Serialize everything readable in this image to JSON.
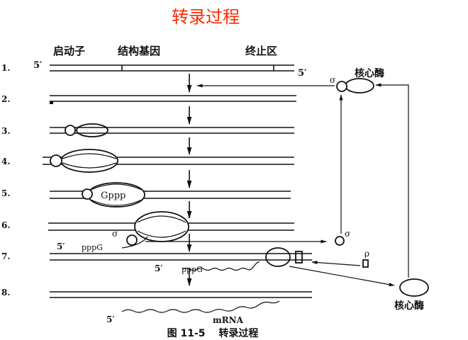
{
  "title": "转录过程",
  "title_color": "#ff2a00",
  "headers": {
    "promoter": "启动子",
    "structural_gene": "结构基因",
    "terminator": "终止区"
  },
  "steps": [
    "1.",
    "2.",
    "3.",
    "4.",
    "5.",
    "6.",
    "7.",
    "8."
  ],
  "labels": {
    "five_prime": "5′",
    "core_enzyme": "核心酶",
    "sigma": "σ",
    "rho": "ρ",
    "gppp": "Gppp",
    "pppg": "pppG",
    "mrna": "mRNA"
  },
  "caption": "图 11-5　 转录过程"
}
